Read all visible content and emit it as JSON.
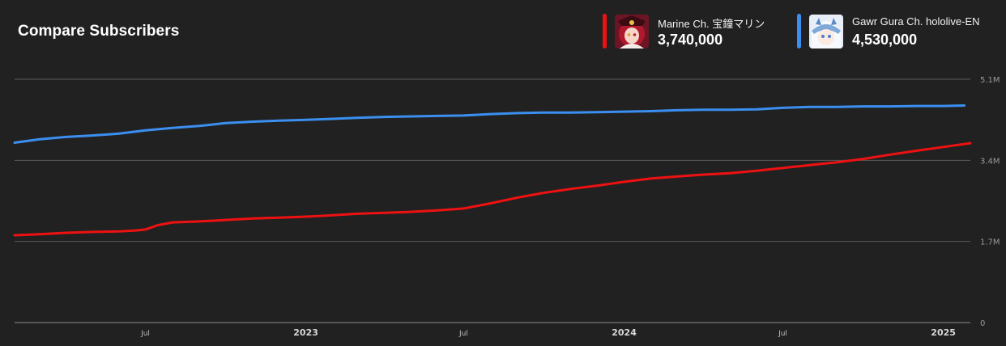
{
  "header": {
    "title": "Compare Subscribers"
  },
  "legend": [
    {
      "name": "Marine Ch. 宝鐘マリン",
      "count": "3,740,000",
      "color": "#ee1111",
      "avatar_icon": "marine-avatar-icon"
    },
    {
      "name": "Gawr Gura Ch. hololive-EN",
      "count": "4,530,000",
      "color": "#3b8ff0",
      "avatar_icon": "gura-avatar-icon"
    }
  ],
  "chart_data": {
    "type": "line",
    "title": "Compare Subscribers",
    "xlabel": "",
    "ylabel": "",
    "ylim": [
      0,
      5.1
    ],
    "y_ticks": [
      "0",
      "1.7M",
      "3.4M",
      "5.1M"
    ],
    "y_tick_values": [
      0,
      1.7,
      3.4,
      5.1
    ],
    "grid": true,
    "legend_position": "top-right",
    "x_ticks": [
      {
        "label": "Jul",
        "date": "2022-07-01",
        "major": false
      },
      {
        "label": "2023",
        "date": "2023-01-01",
        "major": true
      },
      {
        "label": "Jul",
        "date": "2023-07-01",
        "major": false
      },
      {
        "label": "2024",
        "date": "2024-01-01",
        "major": true
      },
      {
        "label": "Jul",
        "date": "2024-07-01",
        "major": false
      },
      {
        "label": "2025",
        "date": "2025-01-01",
        "major": true
      }
    ],
    "x_range": [
      "2022-02-01",
      "2025-02-01"
    ],
    "series": [
      {
        "name": "Marine Ch. 宝鐘マリン",
        "color": "#ee1111",
        "points": [
          [
            "2022-02-01",
            1.83
          ],
          [
            "2022-03-01",
            1.85
          ],
          [
            "2022-04-01",
            1.88
          ],
          [
            "2022-05-01",
            1.9
          ],
          [
            "2022-06-01",
            1.91
          ],
          [
            "2022-06-20",
            1.93
          ],
          [
            "2022-07-01",
            1.95
          ],
          [
            "2022-07-15",
            2.04
          ],
          [
            "2022-08-01",
            2.1
          ],
          [
            "2022-09-01",
            2.12
          ],
          [
            "2022-10-01",
            2.15
          ],
          [
            "2022-11-01",
            2.18
          ],
          [
            "2022-12-01",
            2.2
          ],
          [
            "2023-01-01",
            2.22
          ],
          [
            "2023-02-01",
            2.25
          ],
          [
            "2023-03-01",
            2.28
          ],
          [
            "2023-04-01",
            2.3
          ],
          [
            "2023-05-01",
            2.32
          ],
          [
            "2023-06-01",
            2.35
          ],
          [
            "2023-07-01",
            2.39
          ],
          [
            "2023-08-01",
            2.5
          ],
          [
            "2023-09-01",
            2.62
          ],
          [
            "2023-10-01",
            2.72
          ],
          [
            "2023-11-01",
            2.8
          ],
          [
            "2023-12-01",
            2.87
          ],
          [
            "2024-01-01",
            2.95
          ],
          [
            "2024-02-01",
            3.02
          ],
          [
            "2024-03-01",
            3.06
          ],
          [
            "2024-04-01",
            3.1
          ],
          [
            "2024-05-01",
            3.13
          ],
          [
            "2024-06-01",
            3.18
          ],
          [
            "2024-07-01",
            3.24
          ],
          [
            "2024-08-01",
            3.3
          ],
          [
            "2024-09-01",
            3.36
          ],
          [
            "2024-10-01",
            3.43
          ],
          [
            "2024-11-01",
            3.52
          ],
          [
            "2024-12-01",
            3.6
          ],
          [
            "2025-01-01",
            3.68
          ],
          [
            "2025-02-01",
            3.76
          ]
        ]
      },
      {
        "name": "Gawr Gura Ch. hololive-EN",
        "color": "#3b8ff0",
        "points": [
          [
            "2022-02-01",
            3.77
          ],
          [
            "2022-03-01",
            3.84
          ],
          [
            "2022-04-01",
            3.89
          ],
          [
            "2022-05-01",
            3.92
          ],
          [
            "2022-06-01",
            3.96
          ],
          [
            "2022-07-01",
            4.03
          ],
          [
            "2022-08-01",
            4.08
          ],
          [
            "2022-09-01",
            4.12
          ],
          [
            "2022-10-01",
            4.18
          ],
          [
            "2022-11-01",
            4.21
          ],
          [
            "2022-12-01",
            4.23
          ],
          [
            "2023-01-01",
            4.25
          ],
          [
            "2023-02-01",
            4.27
          ],
          [
            "2023-03-01",
            4.29
          ],
          [
            "2023-04-01",
            4.31
          ],
          [
            "2023-05-01",
            4.32
          ],
          [
            "2023-06-01",
            4.33
          ],
          [
            "2023-07-01",
            4.34
          ],
          [
            "2023-08-01",
            4.37
          ],
          [
            "2023-09-01",
            4.39
          ],
          [
            "2023-10-01",
            4.4
          ],
          [
            "2023-11-01",
            4.4
          ],
          [
            "2023-12-01",
            4.41
          ],
          [
            "2024-01-01",
            4.42
          ],
          [
            "2024-02-01",
            4.43
          ],
          [
            "2024-03-01",
            4.45
          ],
          [
            "2024-04-01",
            4.46
          ],
          [
            "2024-05-01",
            4.46
          ],
          [
            "2024-06-01",
            4.47
          ],
          [
            "2024-07-01",
            4.5
          ],
          [
            "2024-08-01",
            4.52
          ],
          [
            "2024-09-01",
            4.52
          ],
          [
            "2024-10-01",
            4.53
          ],
          [
            "2024-11-01",
            4.53
          ],
          [
            "2024-12-01",
            4.54
          ],
          [
            "2025-01-01",
            4.54
          ],
          [
            "2025-01-25",
            4.55
          ]
        ]
      }
    ]
  }
}
